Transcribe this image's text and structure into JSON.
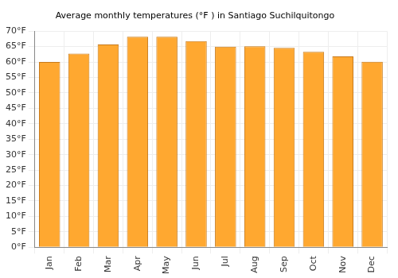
{
  "chart_data": {
    "type": "bar",
    "title": "Average monthly temperatures (°F ) in Santiago Suchilquitongo",
    "categories": [
      "Jan",
      "Feb",
      "Mar",
      "Apr",
      "May",
      "Jun",
      "Jul",
      "Aug",
      "Sep",
      "Oct",
      "Nov",
      "Dec"
    ],
    "values": [
      60.0,
      62.7,
      65.7,
      68.2,
      68.2,
      66.8,
      65.0,
      65.1,
      64.6,
      63.3,
      61.8,
      60.1
    ],
    "color": "#ffa830",
    "ylim": [
      0,
      70
    ],
    "yticks": [
      {
        "value": 0,
        "label": "0°F"
      },
      {
        "value": 5,
        "label": "5°F"
      },
      {
        "value": 10,
        "label": "10°F"
      },
      {
        "value": 15,
        "label": "15°F"
      },
      {
        "value": 20,
        "label": "20°F"
      },
      {
        "value": 25,
        "label": "25°F"
      },
      {
        "value": 30,
        "label": "30°F"
      },
      {
        "value": 35,
        "label": "35°F"
      },
      {
        "value": 40,
        "label": "40°F"
      },
      {
        "value": 45,
        "label": "45°F"
      },
      {
        "value": 50,
        "label": "50°F"
      },
      {
        "value": 55,
        "label": "55°F"
      },
      {
        "value": 60,
        "label": "60°F"
      },
      {
        "value": 65,
        "label": "65°F"
      },
      {
        "value": 70,
        "label": "70°F"
      }
    ],
    "grid": true
  }
}
